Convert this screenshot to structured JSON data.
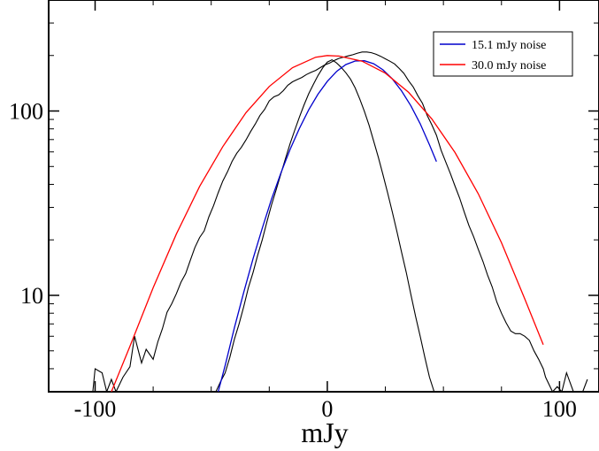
{
  "chart_data": {
    "type": "line",
    "title": "",
    "xlabel": "mJy",
    "ylabel": "",
    "xlim": [
      -120,
      117
    ],
    "ylim": [
      3,
      400
    ],
    "yscale": "log",
    "grid": false,
    "legend_position": "top-right",
    "x_ticks": [
      {
        "value": -100,
        "label": "-100"
      },
      {
        "value": 0,
        "label": "0"
      },
      {
        "value": 100,
        "label": "100"
      }
    ],
    "y_ticks": [
      {
        "value": 10,
        "label": "10"
      },
      {
        "value": 100,
        "label": "100"
      }
    ],
    "series": [
      {
        "name": "15.1 mJy noise",
        "kind": "fit",
        "color": "#0000cc",
        "x": [
          -47,
          -44,
          -40,
          -36,
          -32,
          -28,
          -24,
          -20,
          -16,
          -12,
          -8,
          -4,
          0,
          4,
          8,
          12,
          16,
          20,
          24,
          28,
          32,
          36,
          40,
          44,
          47
        ],
        "y": [
          3.0,
          4.17,
          6.7,
          10.4,
          15.8,
          23.2,
          33.3,
          46.0,
          61.9,
          80.5,
          101.5,
          123.4,
          144.6,
          163.9,
          178.6,
          186.6,
          187.2,
          180.4,
          167.2,
          149.3,
          128.4,
          106.6,
          85.3,
          65.6,
          53.2
        ]
      },
      {
        "name": "30.0 mJy noise",
        "kind": "fit",
        "color": "#ff0000",
        "x": [
          -93,
          -85,
          -75,
          -65,
          -55,
          -45,
          -35,
          -25,
          -15,
          -5,
          0,
          5,
          15,
          25,
          35,
          45,
          55,
          65,
          75,
          85,
          93
        ],
        "y": [
          3.0,
          5.3,
          11.0,
          21.5,
          39.0,
          64.1,
          98.0,
          135.8,
          171.9,
          195.8,
          200.0,
          198.5,
          186.3,
          160.4,
          126.3,
          90.7,
          59.5,
          35.6,
          19.3,
          9.6,
          5.4
        ]
      },
      {
        "name": "",
        "kind": "histogram-wide",
        "color": "#000000",
        "x": [
          -101,
          -100,
          -97,
          -95,
          -93,
          -91,
          -88,
          -85,
          -83,
          -80,
          -78,
          -75,
          -73,
          -71,
          -69,
          -67,
          -65,
          -63,
          -61,
          -59,
          -57,
          -55,
          -53,
          -51,
          -49,
          -47,
          -45,
          -43,
          -41,
          -39,
          -37,
          -35,
          -33,
          -31,
          -29,
          -27,
          -25,
          -23,
          -21,
          -19,
          -17,
          -15,
          -13,
          -11,
          -9,
          -7,
          -5,
          -3,
          -1,
          1,
          3,
          5,
          7,
          9,
          11,
          13,
          15,
          17,
          19,
          21,
          23,
          25,
          27,
          29,
          31,
          33,
          35,
          37,
          39,
          41,
          43,
          45,
          47,
          49,
          51,
          53,
          55,
          57,
          59,
          61,
          63,
          65,
          67,
          69,
          71,
          73,
          75,
          77,
          79,
          81,
          83,
          85,
          87,
          89,
          91,
          93,
          94,
          97,
          99,
          101,
          103,
          106,
          108,
          110,
          112
        ],
        "y": [
          3.0,
          4.0,
          3.8,
          3.0,
          3.5,
          3.0,
          3.6,
          4.1,
          6.0,
          4.3,
          5.1,
          4.5,
          5.6,
          6.6,
          8.1,
          9.0,
          10.2,
          11.8,
          13.1,
          15.5,
          18.2,
          20.6,
          22.4,
          26.7,
          30.6,
          36.0,
          41.7,
          46.8,
          53.3,
          59.0,
          63.5,
          69.8,
          77.4,
          85.1,
          94.5,
          102.0,
          113.4,
          119.4,
          122.2,
          128.8,
          137.9,
          144.0,
          148.0,
          152.0,
          157.6,
          162.0,
          166.0,
          172.0,
          178.0,
          182.0,
          188.0,
          193.0,
          196.0,
          199.0,
          202.0,
          206.0,
          209.0,
          209.0,
          207.0,
          203.0,
          198.0,
          192.0,
          186.0,
          180.0,
          170.0,
          160.0,
          146.0,
          135.0,
          121.0,
          110.0,
          94.6,
          84.3,
          73.8,
          61.3,
          52.9,
          45.8,
          39.1,
          33.7,
          28.2,
          23.9,
          20.8,
          17.8,
          15.3,
          12.9,
          11.1,
          9.2,
          8.0,
          7.1,
          6.4,
          6.2,
          6.2,
          6.0,
          5.7,
          5.0,
          4.5,
          4.0,
          3.6,
          3.0,
          3.2,
          3.0,
          3.8,
          3.0,
          3.0,
          3.0,
          3.5
        ]
      },
      {
        "name": "",
        "kind": "histogram-narrow",
        "color": "#000000",
        "x": [
          -48,
          -46,
          -44,
          -42,
          -40,
          -38,
          -36,
          -34,
          -32,
          -30,
          -28,
          -26,
          -24,
          -22,
          -20,
          -18,
          -16,
          -14,
          -12,
          -10,
          -8,
          -6,
          -4,
          -2,
          0,
          2,
          4,
          6,
          8,
          10,
          12,
          14,
          16,
          18,
          20,
          22,
          24,
          26,
          28,
          30,
          32,
          34,
          36,
          38,
          40,
          42,
          44,
          46,
          48
        ],
        "y": [
          3.0,
          3.4,
          3.8,
          4.6,
          5.8,
          7.0,
          8.7,
          11.0,
          13.3,
          16.5,
          20.1,
          25.1,
          31.0,
          37.5,
          45.5,
          55.3,
          66.6,
          78.9,
          92.7,
          108.0,
          124.0,
          139.4,
          155.7,
          171.2,
          184.2,
          189.5,
          182.2,
          172.2,
          161.2,
          148.7,
          133.4,
          115.9,
          99.4,
          83.5,
          68.5,
          55.9,
          45.0,
          35.8,
          28.3,
          22.1,
          17.1,
          13.3,
          10.1,
          7.7,
          6.0,
          4.6,
          3.6,
          3.0,
          3.0
        ]
      }
    ]
  }
}
